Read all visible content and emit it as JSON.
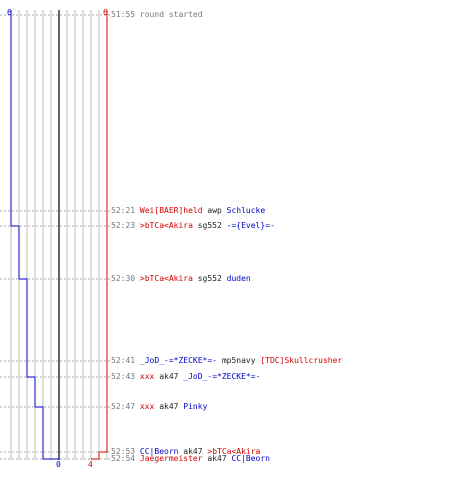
{
  "colors": {
    "team_blue": "#0000c8",
    "team_red": "#d40000",
    "grid": "#bbbbbb",
    "center": "#666666",
    "dotted": "#aaaaaa"
  },
  "counts": {
    "blue_start": "6",
    "red_start": "6",
    "blue_end": "0",
    "red_end": "4"
  },
  "chart_data": {
    "type": "line",
    "y_axis": "time",
    "series": [
      {
        "team": "blue",
        "values": [
          6,
          6,
          5,
          4,
          3,
          2,
          1,
          0
        ]
      },
      {
        "team": "red",
        "values": [
          6,
          6,
          5,
          4
        ]
      }
    ]
  },
  "events": [
    {
      "time": "51:55",
      "sys": "round started"
    },
    {
      "time": "52:21",
      "killer": "Wei[BAER]held",
      "killer_team": "red",
      "weapon": "awp",
      "victim": "Schlucke",
      "victim_team": "blue"
    },
    {
      "time": "52:23",
      "killer": ">bTCa<Akira",
      "killer_team": "red",
      "weapon": "sg552",
      "victim": "-={Evel}=-",
      "victim_team": "blue"
    },
    {
      "time": "52:30",
      "killer": ">bTCa<Akira",
      "killer_team": "red",
      "weapon": "sg552",
      "victim": "duden",
      "victim_team": "blue"
    },
    {
      "time": "52:41",
      "killer": "_JoD_-=*ZECKE*=-",
      "killer_team": "blue",
      "weapon": "mp5navy",
      "victim": "[TDC]Skullcrusher",
      "victim_team": "red"
    },
    {
      "time": "52:43",
      "killer": "xxx",
      "killer_team": "red",
      "weapon": "ak47",
      "victim": "_JoD_-=*ZECKE*=-",
      "victim_team": "blue"
    },
    {
      "time": "52:47",
      "killer": "xxx",
      "killer_team": "red",
      "weapon": "ak47",
      "victim": "Pinky",
      "victim_team": "blue"
    },
    {
      "time": "52:53",
      "killer": "CC|Beorn",
      "killer_team": "blue",
      "weapon": "ak47",
      "victim": ">bTCa<Akira",
      "victim_team": "red"
    },
    {
      "time": "52:54",
      "killer": "Jaegermeister",
      "killer_team": "red",
      "weapon": "ak47",
      "victim": "CC|Beorn",
      "victim_team": "blue"
    }
  ]
}
